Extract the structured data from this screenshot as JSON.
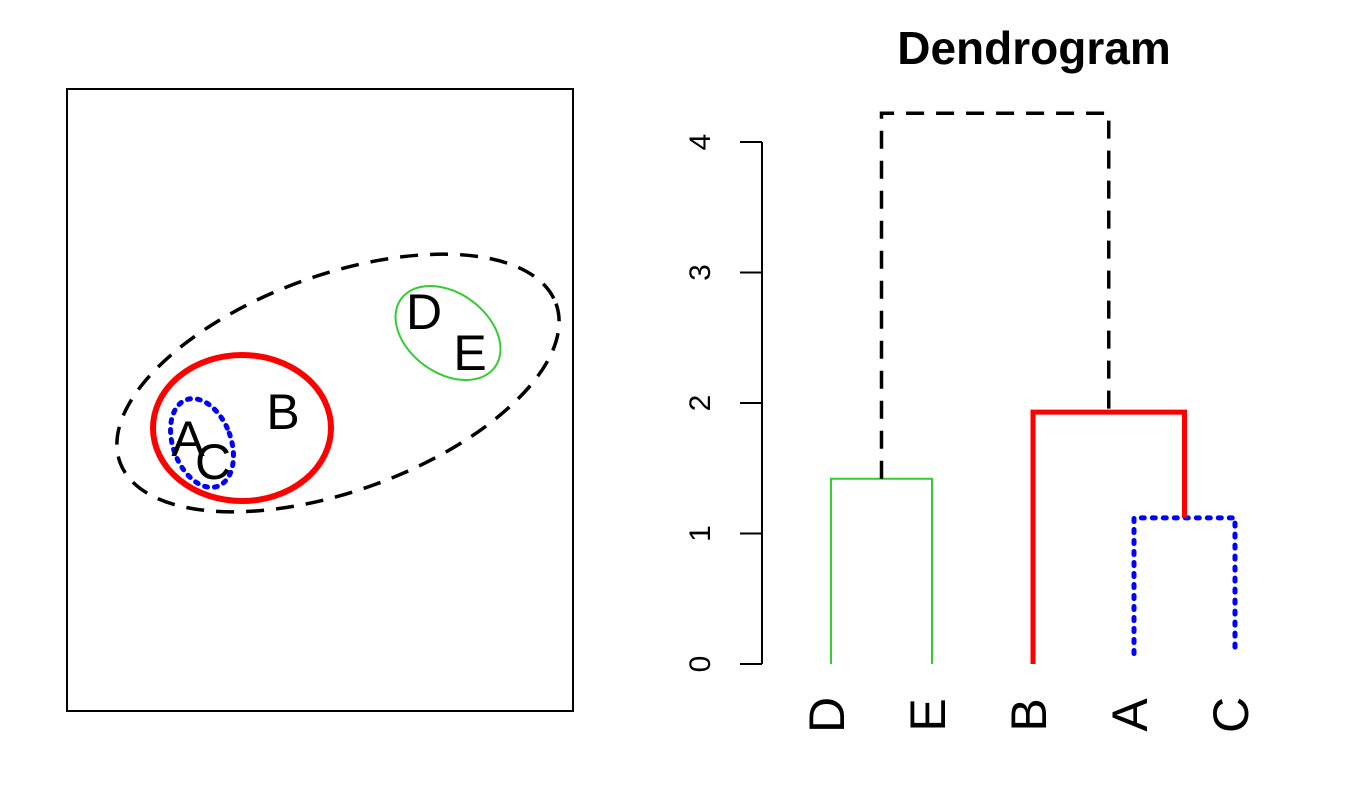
{
  "title": "Dendrogram",
  "colors": {
    "top_merge": "#000000",
    "de_cluster": "#33cc33",
    "bac_cluster": "#ff0000",
    "ac_cluster": "#0000ff"
  },
  "scatter": {
    "points": [
      {
        "label": "A"
      },
      {
        "label": "B"
      },
      {
        "label": "C"
      },
      {
        "label": "D"
      },
      {
        "label": "E"
      }
    ]
  },
  "dendrogram": {
    "y_ticks": [
      "0",
      "1",
      "2",
      "3",
      "4"
    ],
    "y_range": [
      0,
      4
    ],
    "leaves": [
      "D",
      "E",
      "B",
      "A",
      "C"
    ],
    "merges": [
      {
        "left": "A",
        "right": "C",
        "height": 1.12,
        "style": "dotted",
        "color": "#0000ff"
      },
      {
        "left": "D",
        "right": "E",
        "height": 1.42,
        "style": "solid",
        "color": "#33cc33"
      },
      {
        "left": "B",
        "right": "AC",
        "height": 1.93,
        "style": "solid",
        "color": "#ff0000"
      },
      {
        "left": "DE",
        "right": "BAC",
        "height": 4.22,
        "style": "dashed",
        "color": "#000000"
      }
    ]
  }
}
